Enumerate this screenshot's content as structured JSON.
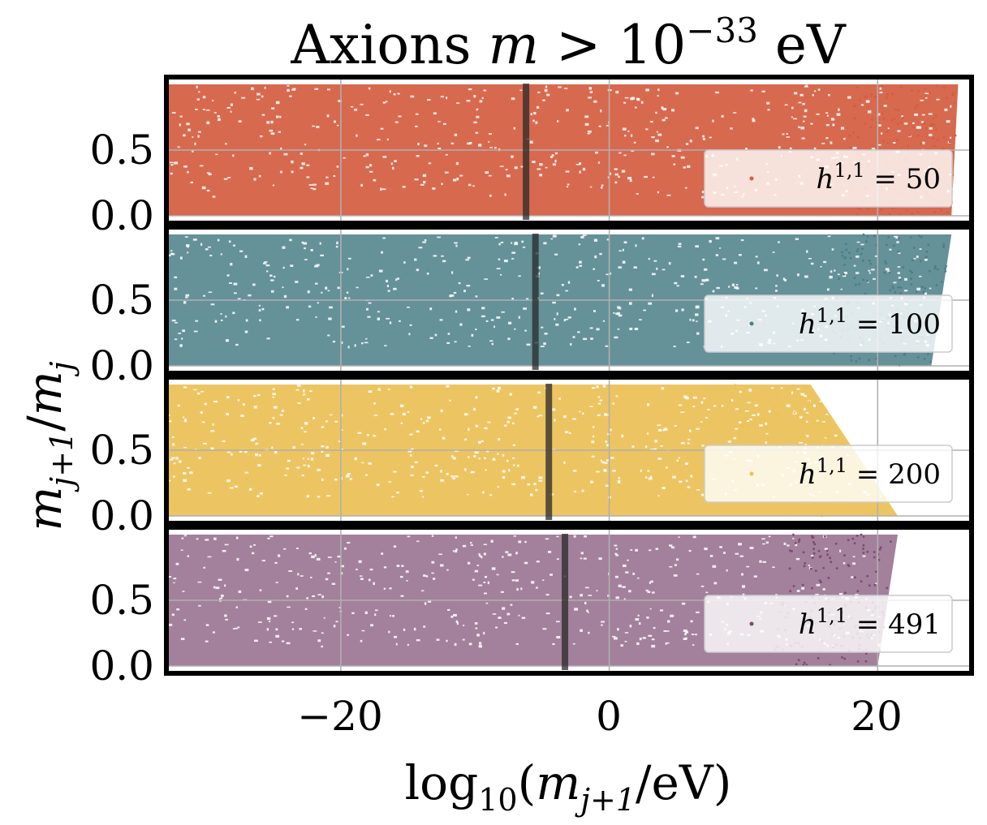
{
  "chart_data": {
    "type": "scatter",
    "title": "Axions m > 10^-33 eV",
    "title_parts": {
      "prefix": "Axions ",
      "var": "m",
      "rel": " > ",
      "base": "10",
      "exp": "−33",
      "unit": " eV"
    },
    "xlabel": "log10(m_{j+1}/eV)",
    "xlabel_parts": {
      "fn": "log",
      "sub": "10",
      "open": "(",
      "var": "m",
      "varsub": "j+1",
      "unit": "/eV)"
    },
    "ylabel": "m_{j+1}/m_j",
    "ylabel_parts": {
      "var": "m",
      "sub1": "j+1",
      "slash": "/",
      "var2": "m",
      "sub2": "j"
    },
    "xlim": [
      -33,
      27
    ],
    "ylim": [
      0,
      1
    ],
    "x_ticks": [
      -20,
      0,
      20
    ],
    "x_tick_labels": [
      "−20",
      "0",
      "20"
    ],
    "y_ticks": [
      0.0,
      0.5
    ],
    "y_tick_labels": [
      "0.0",
      "0.5"
    ],
    "grid": true,
    "legend_placement": "lower-right",
    "panels": [
      {
        "name": "h11-50",
        "legend_prefix": "h",
        "legend_sup": "1,1",
        "legend_value": " = 50",
        "color": "#d45c3f",
        "vline_x": -6.2,
        "x_min": -33,
        "x_max": 25.5,
        "x_max_top": 26.0,
        "density": 0.92
      },
      {
        "name": "h11-100",
        "legend_prefix": "h",
        "legend_sup": "1,1",
        "legend_value": " = 100",
        "color": "#4a7e87",
        "vline_x": -5.5,
        "x_min": -33,
        "x_max": 24.0,
        "x_max_top": 25.5,
        "density": 0.85
      },
      {
        "name": "h11-200",
        "legend_prefix": "h",
        "legend_sup": "1,1",
        "legend_value": " = 200",
        "color": "#ebc25a",
        "vline_x": -4.5,
        "x_min": -33,
        "x_max": 21.5,
        "x_max_top": 15.0,
        "density": 0.95
      },
      {
        "name": "h11-491",
        "legend_prefix": "h",
        "legend_sup": "1,1",
        "legend_value": " = 491",
        "color": "#7c4a70",
        "vline_x": -3.3,
        "x_min": -33,
        "x_max": 20.0,
        "x_max_top": 21.5,
        "density": 0.7
      }
    ]
  }
}
